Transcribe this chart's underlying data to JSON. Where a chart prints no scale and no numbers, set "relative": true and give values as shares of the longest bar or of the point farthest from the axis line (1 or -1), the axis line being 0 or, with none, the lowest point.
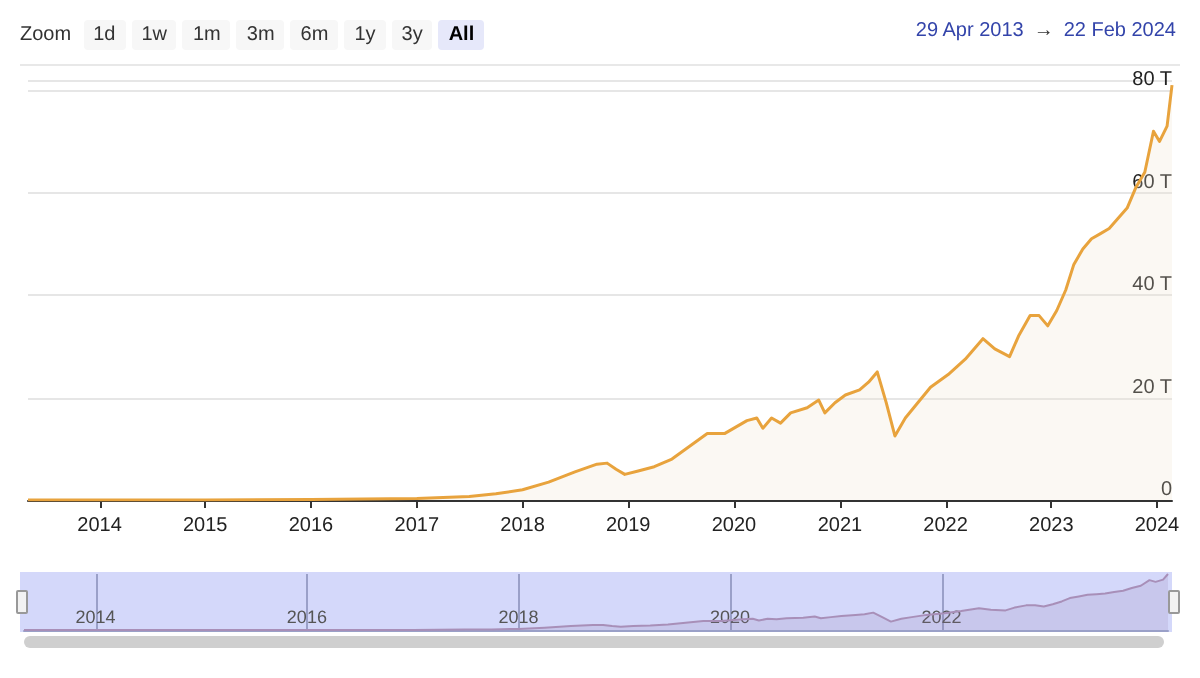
{
  "chart_data": [
    {
      "type": "area",
      "annotations": [
        "Zoom",
        "1d",
        "1w",
        "1m",
        "3m",
        "6m",
        "1y",
        "3y",
        "All",
        "29 Apr 2013",
        "→",
        "22 Feb 2024"
      ],
      "x": [
        "2013-04-29",
        "2014-01-01",
        "2015-01-01",
        "2016-01-01",
        "2016-07-01",
        "2017-01-01",
        "2017-07-01",
        "2017-10-01",
        "2018-01-01",
        "2018-04-01",
        "2018-07-01",
        "2018-09-15",
        "2018-10-20",
        "2018-11-20",
        "2018-12-20",
        "2019-02-01",
        "2019-04-01",
        "2019-06-01",
        "2019-08-01",
        "2019-10-01",
        "2019-12-01",
        "2020-02-15",
        "2020-03-20",
        "2020-04-10",
        "2020-05-10",
        "2020-06-10",
        "2020-07-15",
        "2020-09-10",
        "2020-10-20",
        "2020-11-10",
        "2020-12-15",
        "2021-01-20",
        "2021-03-10",
        "2021-04-10",
        "2021-05-10",
        "2021-06-10",
        "2021-07-10",
        "2021-08-15",
        "2021-09-20",
        "2021-11-10",
        "2022-01-10",
        "2022-03-10",
        "2022-05-10",
        "2022-06-20",
        "2022-08-10",
        "2022-09-10",
        "2022-10-20",
        "2022-11-20",
        "2022-12-20",
        "2023-01-20",
        "2023-02-20",
        "2023-03-20",
        "2023-04-20",
        "2023-05-20",
        "2023-06-20",
        "2023-07-20",
        "2023-08-20",
        "2023-09-20",
        "2023-10-20",
        "2023-11-20",
        "2023-12-20",
        "2024-01-10",
        "2024-02-05",
        "2024-02-22"
      ],
      "series": [
        {
          "color": "#e8a33d",
          "values": [
            0,
            0,
            0,
            0.1,
            0.2,
            0.3,
            0.7,
            1.2,
            2,
            3.5,
            5.5,
            7,
            7.2,
            6,
            5,
            5.6,
            6.5,
            8,
            10.5,
            13,
            13,
            15.5,
            16,
            14,
            16,
            15,
            17,
            18,
            19.5,
            17,
            19,
            20.5,
            21.5,
            23,
            25,
            19,
            12.5,
            16,
            18.5,
            22,
            24.5,
            27.5,
            31.5,
            29.5,
            28,
            32,
            36,
            36,
            34,
            37,
            41,
            46,
            49,
            51,
            52,
            53,
            55,
            57,
            61,
            64,
            72,
            70,
            73,
            81
          ]
        }
      ],
      "xlim": [
        "2013-04-29",
        "2024-02-22"
      ],
      "xticks": [
        {
          "value": "2014",
          "label": "2014"
        },
        {
          "value": "2015",
          "label": "2015"
        },
        {
          "value": "2016",
          "label": "2016"
        },
        {
          "value": "2017",
          "label": "2017"
        },
        {
          "value": "2018",
          "label": "2018"
        },
        {
          "value": "2019",
          "label": "2019"
        },
        {
          "value": "2020",
          "label": "2020"
        },
        {
          "value": "2021",
          "label": "2021"
        },
        {
          "value": "2022",
          "label": "2022"
        },
        {
          "value": "2023",
          "label": "2023"
        },
        {
          "value": "2024",
          "label": "2024"
        }
      ],
      "ylim": [
        0,
        82
      ],
      "yticks": [
        0,
        {
          "value": 20,
          "label": "20 T"
        },
        {
          "value": 40,
          "label": "40 T"
        },
        {
          "value": 60,
          "label": "60 T"
        },
        {
          "value": 80,
          "label": "80 T"
        }
      ],
      "grid": "y",
      "marker": "none"
    },
    {
      "type": "area",
      "tick_labels": "x",
      "x": [
        "2013-04-29",
        "2014-01-01",
        "2015-01-01",
        "2016-01-01",
        "2016-07-01",
        "2017-01-01",
        "2017-07-01",
        "2017-10-01",
        "2018-01-01",
        "2018-04-01",
        "2018-07-01",
        "2018-09-15",
        "2018-10-20",
        "2018-11-20",
        "2018-12-20",
        "2019-02-01",
        "2019-04-01",
        "2019-06-01",
        "2019-08-01",
        "2019-10-01",
        "2019-12-01",
        "2020-02-15",
        "2020-03-20",
        "2020-04-10",
        "2020-05-10",
        "2020-06-10",
        "2020-07-15",
        "2020-09-10",
        "2020-10-20",
        "2020-11-10",
        "2020-12-15",
        "2021-01-20",
        "2021-03-10",
        "2021-04-10",
        "2021-05-10",
        "2021-06-10",
        "2021-07-10",
        "2021-08-15",
        "2021-09-20",
        "2021-11-10",
        "2022-01-10",
        "2022-03-10",
        "2022-05-10",
        "2022-06-20",
        "2022-08-10",
        "2022-09-10",
        "2022-10-20",
        "2022-11-20",
        "2022-12-20",
        "2023-01-20",
        "2023-02-20",
        "2023-03-20",
        "2023-04-20",
        "2023-05-20",
        "2023-06-20",
        "2023-07-20",
        "2023-08-20",
        "2023-09-20",
        "2023-10-20",
        "2023-11-20",
        "2023-12-20",
        "2024-01-10",
        "2024-02-05",
        "2024-02-22"
      ],
      "relative": true,
      "series": [
        {
          "color": "#a88fb8",
          "values": [
            0,
            0,
            0,
            0,
            0,
            0,
            0.01,
            0.01,
            0.02,
            0.04,
            0.07,
            0.09,
            0.09,
            0.07,
            0.06,
            0.07,
            0.08,
            0.1,
            0.13,
            0.16,
            0.16,
            0.19,
            0.2,
            0.17,
            0.2,
            0.19,
            0.21,
            0.22,
            0.24,
            0.21,
            0.23,
            0.25,
            0.27,
            0.28,
            0.31,
            0.23,
            0.15,
            0.2,
            0.23,
            0.27,
            0.3,
            0.34,
            0.39,
            0.36,
            0.35,
            0.4,
            0.44,
            0.44,
            0.42,
            0.46,
            0.51,
            0.57,
            0.6,
            0.63,
            0.64,
            0.65,
            0.68,
            0.7,
            0.75,
            0.79,
            0.89,
            0.86,
            0.9,
            1
          ]
        }
      ],
      "xlim": [
        "2013-04-29",
        "2024-02-22"
      ],
      "xticks": [
        {
          "value": "2014",
          "label": "2014"
        },
        {
          "value": "2016",
          "label": "2016"
        },
        {
          "value": "2018",
          "label": "2018"
        },
        {
          "value": "2020",
          "label": "2020"
        },
        {
          "value": "2022",
          "label": "2022"
        }
      ],
      "grid": "x",
      "marker": "none"
    }
  ]
}
